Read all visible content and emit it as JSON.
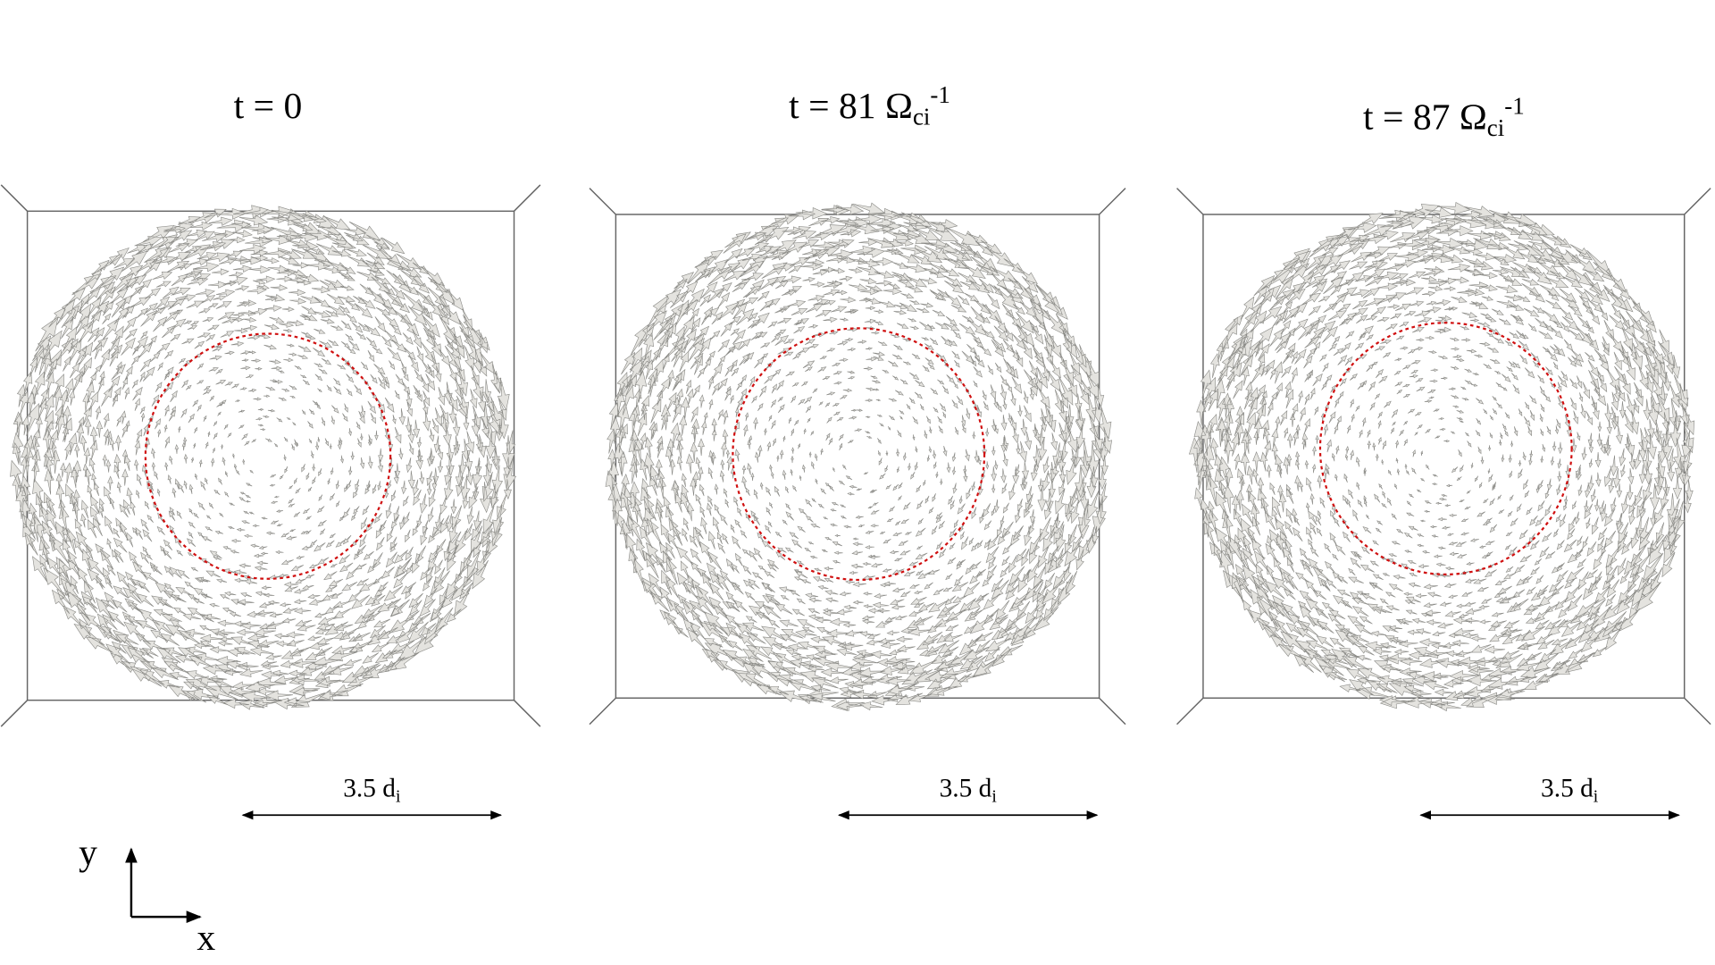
{
  "panels": [
    {
      "title": {
        "main": "t = 0"
      },
      "scale_bar": {
        "label": "3.5 d",
        "subscript": "i"
      }
    },
    {
      "title": {
        "main": "t = 81 Ω",
        "subscript": "ci",
        "superscript": "-1"
      },
      "scale_bar": {
        "label": "3.5 d",
        "subscript": "i"
      }
    },
    {
      "title": {
        "main": "t = 87 Ω",
        "subscript": "ci",
        "superscript": "-1"
      },
      "scale_bar": {
        "label": "3.5 d",
        "subscript": "i"
      }
    }
  ],
  "axes": {
    "y": "y",
    "x": "x"
  }
}
